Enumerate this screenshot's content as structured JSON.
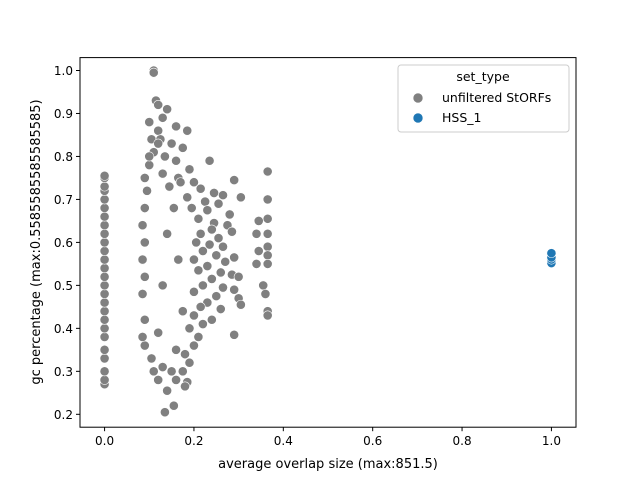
{
  "chart_data": {
    "type": "scatter",
    "xlabel": "average overlap size (max:851.5)",
    "ylabel": "gc percentage (max:0.5585585585585585)",
    "xlim": [
      -0.055,
      1.055
    ],
    "ylim": [
      0.17,
      1.03
    ],
    "xticks": [
      0.0,
      0.2,
      0.4,
      0.6,
      0.8,
      1.0
    ],
    "xtick_labels": [
      "0.0",
      "0.2",
      "0.4",
      "0.6",
      "0.8",
      "1.0"
    ],
    "yticks": [
      0.2,
      0.3,
      0.4,
      0.5,
      0.6,
      0.7,
      0.8,
      0.9,
      1.0
    ],
    "ytick_labels": [
      "0.2",
      "0.3",
      "0.4",
      "0.5",
      "0.6",
      "0.7",
      "0.8",
      "0.9",
      "1.0"
    ],
    "grid": false,
    "legend": {
      "title": "set_type",
      "placement": "top-right",
      "entries": [
        {
          "label": "unfiltered StORFs",
          "color": "#808080"
        },
        {
          "label": "HSS_1",
          "color": "#1f77b4"
        }
      ]
    },
    "series": [
      {
        "name": "unfiltered StORFs",
        "color": "#808080",
        "points": [
          [
            0.0,
            0.27
          ],
          [
            0.0,
            0.28
          ],
          [
            0.0,
            0.3
          ],
          [
            0.0,
            0.33
          ],
          [
            0.0,
            0.35
          ],
          [
            0.0,
            0.38
          ],
          [
            0.0,
            0.4
          ],
          [
            0.0,
            0.42
          ],
          [
            0.0,
            0.44
          ],
          [
            0.0,
            0.46
          ],
          [
            0.0,
            0.48
          ],
          [
            0.0,
            0.5
          ],
          [
            0.0,
            0.52
          ],
          [
            0.0,
            0.54
          ],
          [
            0.0,
            0.56
          ],
          [
            0.0,
            0.58
          ],
          [
            0.0,
            0.6
          ],
          [
            0.0,
            0.62
          ],
          [
            0.0,
            0.64
          ],
          [
            0.0,
            0.66
          ],
          [
            0.0,
            0.68
          ],
          [
            0.0,
            0.7
          ],
          [
            0.0,
            0.72
          ],
          [
            0.0,
            0.73
          ],
          [
            0.0,
            0.75
          ],
          [
            0.0,
            0.755
          ],
          [
            0.11,
            1.0
          ],
          [
            0.11,
            0.995
          ],
          [
            0.115,
            0.93
          ],
          [
            0.12,
            0.92
          ],
          [
            0.14,
            0.91
          ],
          [
            0.1,
            0.88
          ],
          [
            0.13,
            0.89
          ],
          [
            0.16,
            0.87
          ],
          [
            0.185,
            0.86
          ],
          [
            0.12,
            0.86
          ],
          [
            0.105,
            0.84
          ],
          [
            0.125,
            0.84
          ],
          [
            0.15,
            0.83
          ],
          [
            0.175,
            0.82
          ],
          [
            0.11,
            0.81
          ],
          [
            0.135,
            0.8
          ],
          [
            0.16,
            0.79
          ],
          [
            0.235,
            0.79
          ],
          [
            0.1,
            0.78
          ],
          [
            0.19,
            0.77
          ],
          [
            0.13,
            0.76
          ],
          [
            0.165,
            0.75
          ],
          [
            0.29,
            0.745
          ],
          [
            0.365,
            0.765
          ],
          [
            0.2,
            0.74
          ],
          [
            0.145,
            0.73
          ],
          [
            0.215,
            0.725
          ],
          [
            0.245,
            0.715
          ],
          [
            0.265,
            0.71
          ],
          [
            0.185,
            0.705
          ],
          [
            0.225,
            0.695
          ],
          [
            0.255,
            0.69
          ],
          [
            0.305,
            0.705
          ],
          [
            0.365,
            0.7
          ],
          [
            0.195,
            0.68
          ],
          [
            0.23,
            0.675
          ],
          [
            0.28,
            0.665
          ],
          [
            0.21,
            0.655
          ],
          [
            0.345,
            0.65
          ],
          [
            0.365,
            0.655
          ],
          [
            0.245,
            0.645
          ],
          [
            0.275,
            0.64
          ],
          [
            0.24,
            0.63
          ],
          [
            0.285,
            0.625
          ],
          [
            0.215,
            0.62
          ],
          [
            0.34,
            0.62
          ],
          [
            0.365,
            0.62
          ],
          [
            0.255,
            0.61
          ],
          [
            0.205,
            0.6
          ],
          [
            0.235,
            0.595
          ],
          [
            0.265,
            0.59
          ],
          [
            0.345,
            0.58
          ],
          [
            0.365,
            0.59
          ],
          [
            0.22,
            0.58
          ],
          [
            0.25,
            0.57
          ],
          [
            0.29,
            0.565
          ],
          [
            0.365,
            0.57
          ],
          [
            0.2,
            0.56
          ],
          [
            0.27,
            0.555
          ],
          [
            0.34,
            0.55
          ],
          [
            0.365,
            0.55
          ],
          [
            0.23,
            0.545
          ],
          [
            0.21,
            0.535
          ],
          [
            0.26,
            0.53
          ],
          [
            0.285,
            0.525
          ],
          [
            0.24,
            0.515
          ],
          [
            0.355,
            0.5
          ],
          [
            0.3,
            0.52
          ],
          [
            0.22,
            0.5
          ],
          [
            0.265,
            0.495
          ],
          [
            0.29,
            0.49
          ],
          [
            0.2,
            0.485
          ],
          [
            0.25,
            0.475
          ],
          [
            0.3,
            0.47
          ],
          [
            0.36,
            0.48
          ],
          [
            0.23,
            0.46
          ],
          [
            0.305,
            0.455
          ],
          [
            0.215,
            0.45
          ],
          [
            0.26,
            0.445
          ],
          [
            0.365,
            0.44
          ],
          [
            0.365,
            0.43
          ],
          [
            0.2,
            0.43
          ],
          [
            0.24,
            0.42
          ],
          [
            0.22,
            0.41
          ],
          [
            0.19,
            0.4
          ],
          [
            0.21,
            0.38
          ],
          [
            0.29,
            0.385
          ],
          [
            0.2,
            0.36
          ],
          [
            0.18,
            0.34
          ],
          [
            0.19,
            0.32
          ],
          [
            0.175,
            0.3
          ],
          [
            0.16,
            0.28
          ],
          [
            0.185,
            0.275
          ],
          [
            0.18,
            0.265
          ],
          [
            0.14,
            0.255
          ],
          [
            0.12,
            0.28
          ],
          [
            0.155,
            0.22
          ],
          [
            0.135,
            0.205
          ],
          [
            0.15,
            0.3
          ],
          [
            0.13,
            0.31
          ],
          [
            0.105,
            0.33
          ],
          [
            0.09,
            0.36
          ],
          [
            0.085,
            0.38
          ],
          [
            0.09,
            0.42
          ],
          [
            0.085,
            0.48
          ],
          [
            0.09,
            0.52
          ],
          [
            0.085,
            0.56
          ],
          [
            0.09,
            0.6
          ],
          [
            0.085,
            0.64
          ],
          [
            0.09,
            0.68
          ],
          [
            0.095,
            0.72
          ],
          [
            0.09,
            0.75
          ],
          [
            0.1,
            0.8
          ],
          [
            0.12,
            0.83
          ],
          [
            0.17,
            0.74
          ],
          [
            0.155,
            0.68
          ],
          [
            0.14,
            0.62
          ],
          [
            0.165,
            0.56
          ],
          [
            0.13,
            0.5
          ],
          [
            0.175,
            0.44
          ],
          [
            0.12,
            0.39
          ],
          [
            0.16,
            0.35
          ],
          [
            0.11,
            0.3
          ]
        ]
      },
      {
        "name": "HSS_1",
        "color": "#1f77b4",
        "points": [
          [
            1.0,
            0.552
          ],
          [
            1.0,
            0.56
          ],
          [
            1.0,
            0.565
          ],
          [
            1.0,
            0.575
          ]
        ]
      }
    ]
  }
}
